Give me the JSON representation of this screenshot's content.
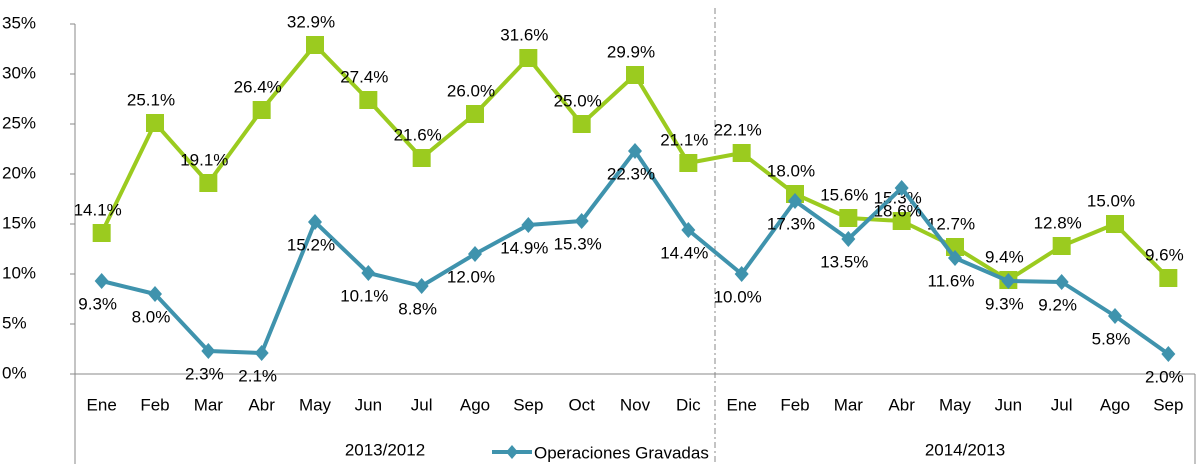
{
  "chart_data": {
    "type": "line",
    "category_groups": [
      {
        "label": "2013/2012",
        "categories": [
          "Ene",
          "Feb",
          "Mar",
          "Abr",
          "May",
          "Jun",
          "Jul",
          "Ago",
          "Sep",
          "Oct",
          "Nov",
          "Dic"
        ]
      },
      {
        "label": "2014/2013",
        "categories": [
          "Ene",
          "Feb",
          "Mar",
          "Abr",
          "May",
          "Jun",
          "Jul",
          "Ago",
          "Sep"
        ]
      }
    ],
    "series": [
      {
        "color": "#9bcb1f",
        "marker": "square",
        "values": [
          14.1,
          25.1,
          19.1,
          26.4,
          32.9,
          27.4,
          21.6,
          26.0,
          31.6,
          25.0,
          29.9,
          21.1,
          22.1,
          18.0,
          15.6,
          15.3,
          12.7,
          9.4,
          12.8,
          15.0,
          9.6
        ],
        "value_labels": [
          "14.1%",
          "25.1%",
          "19.1%",
          "26.4%",
          "32.9%",
          "27.4%",
          "21.6%",
          "26.0%",
          "31.6%",
          "25.0%",
          "29.9%",
          "21.1%",
          "22.1%",
          "18.0%",
          "15.6%",
          "15.3%",
          "12.7%",
          "9.4%",
          "12.8%",
          "15.0%",
          "9.6%"
        ]
      },
      {
        "name": "Operaciones Gravadas",
        "color": "#3f93ad",
        "marker": "diamond",
        "values": [
          9.3,
          8.0,
          2.3,
          2.1,
          15.2,
          10.1,
          8.8,
          12.0,
          14.9,
          15.3,
          22.3,
          14.4,
          10.0,
          17.3,
          13.5,
          18.6,
          11.6,
          9.3,
          9.2,
          5.8,
          2.0
        ],
        "value_labels": [
          "9.3%",
          "8.0%",
          "2.3%",
          "2.1%",
          "15.2%",
          "10.1%",
          "8.8%",
          "12.0%",
          "14.9%",
          "15.3%",
          "22.3%",
          "14.4%",
          "10.0%",
          "17.3%",
          "13.5%",
          "18.6%",
          "11.6%",
          "9.3%",
          "9.2%",
          "5.8%",
          "2.0%"
        ]
      }
    ],
    "ylim": [
      0,
      35
    ],
    "yticks": [
      {
        "value": 0,
        "label": "0%"
      },
      {
        "value": 5,
        "label": "5%"
      },
      {
        "value": 10,
        "label": "10%"
      },
      {
        "value": 15,
        "label": "15%"
      },
      {
        "value": 20,
        "label": "20%"
      },
      {
        "value": 25,
        "label": "25%"
      },
      {
        "value": 30,
        "label": "30%"
      },
      {
        "value": 35,
        "label": "35%"
      }
    ],
    "grid": false,
    "legend": "bottom"
  }
}
